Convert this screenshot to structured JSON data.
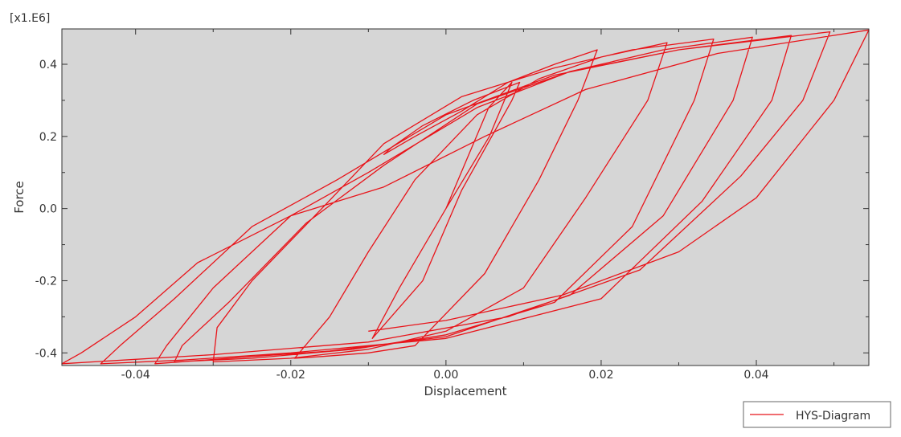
{
  "chart_data": {
    "type": "line",
    "title": "",
    "xlabel": "Displacement",
    "ylabel": "Force",
    "y_multiplier_label": "[x1.E6]",
    "xlim": [
      -0.0495,
      0.0545
    ],
    "ylim": [
      -0.435,
      0.498
    ],
    "x_ticks": [
      -0.04,
      -0.02,
      0.0,
      0.02,
      0.04
    ],
    "x_tick_labels": [
      "-0.04",
      "-0.02",
      "0.00",
      "0.02",
      "0.04"
    ],
    "y_ticks": [
      -0.4,
      -0.2,
      0.0,
      0.2,
      0.4
    ],
    "y_tick_labels": [
      "-0.4",
      "-0.2",
      "0.0",
      "0.2",
      "0.4"
    ],
    "grid": false,
    "plot_background": "#d6d6d6",
    "legend_position": "bottom-right",
    "series": [
      {
        "name": "HYS-Diagram",
        "color": "#e8141a",
        "x": [
          0.0,
          0.0055,
          0.0085,
          0.0056,
          0.0,
          -0.006,
          -0.0095,
          -0.003,
          0.002,
          0.0085,
          0.0095,
          0.0035,
          -0.003,
          -0.007,
          -0.008,
          -0.004,
          0.002,
          0.008,
          0.014,
          0.0195,
          0.017,
          0.012,
          0.005,
          -0.004,
          -0.01,
          -0.016,
          -0.0195,
          -0.015,
          -0.01,
          -0.004,
          0.004,
          0.012,
          0.02,
          0.0285,
          0.026,
          0.018,
          0.01,
          0.0,
          -0.01,
          -0.02,
          -0.03,
          -0.0295,
          -0.025,
          -0.016,
          -0.008,
          0.002,
          0.014,
          0.024,
          0.0345,
          0.032,
          0.024,
          0.014,
          0.0,
          -0.012,
          -0.025,
          -0.035,
          -0.034,
          -0.028,
          -0.018,
          -0.008,
          0.004,
          0.016,
          0.028,
          0.0395,
          0.037,
          0.028,
          0.016,
          0.0,
          -0.015,
          -0.028,
          -0.0375,
          -0.036,
          -0.03,
          -0.02,
          -0.01,
          0.004,
          0.016,
          0.03,
          0.0445,
          0.042,
          0.033,
          0.02,
          0.0,
          -0.02,
          -0.034,
          -0.0445,
          -0.042,
          -0.035,
          -0.025,
          -0.014,
          0.0,
          0.014,
          0.03,
          0.0495,
          0.046,
          0.038,
          0.025,
          0.008,
          -0.01,
          -0.03,
          -0.0495,
          -0.047,
          -0.04,
          -0.032,
          -0.02,
          -0.008,
          0.005,
          0.018,
          0.035,
          0.0545,
          0.05,
          0.04,
          0.03,
          0.015,
          0.0,
          -0.01
        ],
        "y": [
          0.0,
          0.28,
          0.35,
          0.2,
          0.0,
          -0.22,
          -0.36,
          -0.2,
          0.05,
          0.3,
          0.35,
          0.3,
          0.23,
          0.17,
          0.15,
          0.2,
          0.27,
          0.35,
          0.4,
          0.44,
          0.3,
          0.08,
          -0.18,
          -0.38,
          -0.4,
          -0.41,
          -0.415,
          -0.3,
          -0.12,
          0.08,
          0.26,
          0.36,
          0.42,
          0.46,
          0.3,
          0.03,
          -0.22,
          -0.34,
          -0.39,
          -0.415,
          -0.425,
          -0.33,
          -0.2,
          0.0,
          0.18,
          0.31,
          0.39,
          0.44,
          0.47,
          0.3,
          -0.05,
          -0.26,
          -0.35,
          -0.39,
          -0.415,
          -0.425,
          -0.38,
          -0.26,
          -0.04,
          0.12,
          0.29,
          0.38,
          0.44,
          0.475,
          0.3,
          -0.02,
          -0.24,
          -0.355,
          -0.395,
          -0.415,
          -0.43,
          -0.38,
          -0.22,
          -0.02,
          0.1,
          0.28,
          0.38,
          0.44,
          0.48,
          0.3,
          0.02,
          -0.25,
          -0.36,
          -0.4,
          -0.42,
          -0.43,
          -0.38,
          -0.25,
          -0.05,
          0.08,
          0.26,
          0.37,
          0.44,
          0.49,
          0.3,
          0.09,
          -0.17,
          -0.3,
          -0.37,
          -0.405,
          -0.43,
          -0.4,
          -0.3,
          -0.15,
          -0.02,
          0.06,
          0.2,
          0.33,
          0.43,
          0.495,
          0.3,
          0.03,
          -0.12,
          -0.24,
          -0.31,
          -0.34
        ]
      }
    ],
    "legend": [
      {
        "label": "HYS-Diagram",
        "color": "#e8141a"
      }
    ]
  }
}
